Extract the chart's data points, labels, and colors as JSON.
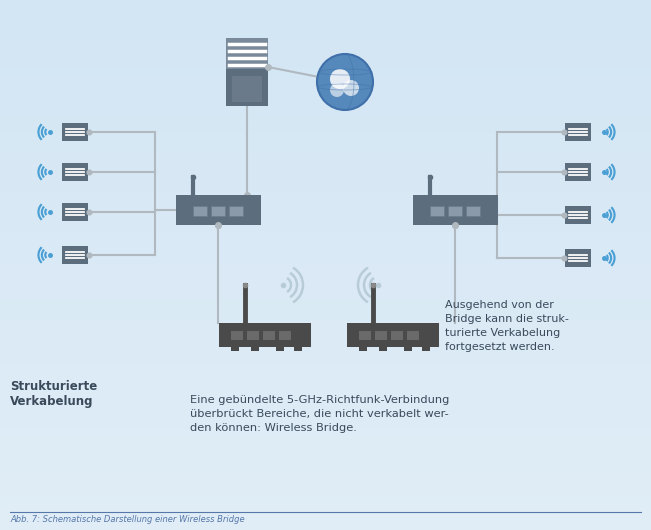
{
  "bg_color": "#dae8f4",
  "icon_color": "#5c6e7e",
  "icon_color_dark": "#4a5a6a",
  "line_color": "#b0b8c0",
  "wifi_color": "#4a9fd4",
  "wifi_color_faded": "#b8ccd8",
  "globe_color": "#5588bb",
  "globe_color2": "#7aaacc",
  "text_color": "#3a4a5a",
  "caption_color": "#5577aa",
  "title": "Abb. 7: Schematische Darstellung einer Wireless Bridge",
  "text_left_label": "Strukturierte\nVerkabelung",
  "text_right_label": "Ausgehend von der\nBridge kann die struk-\nturierte Verkabelung\nfortgesetzt werden.",
  "text_bottom": "Eine gebündelte 5-GHz-Richtfunk-Verbindung\nüberbrückt Bereiche, die nicht verkabelt wer-\nden können: Wireless Bridge.",
  "figsize": [
    6.51,
    5.3
  ],
  "dpi": 100
}
